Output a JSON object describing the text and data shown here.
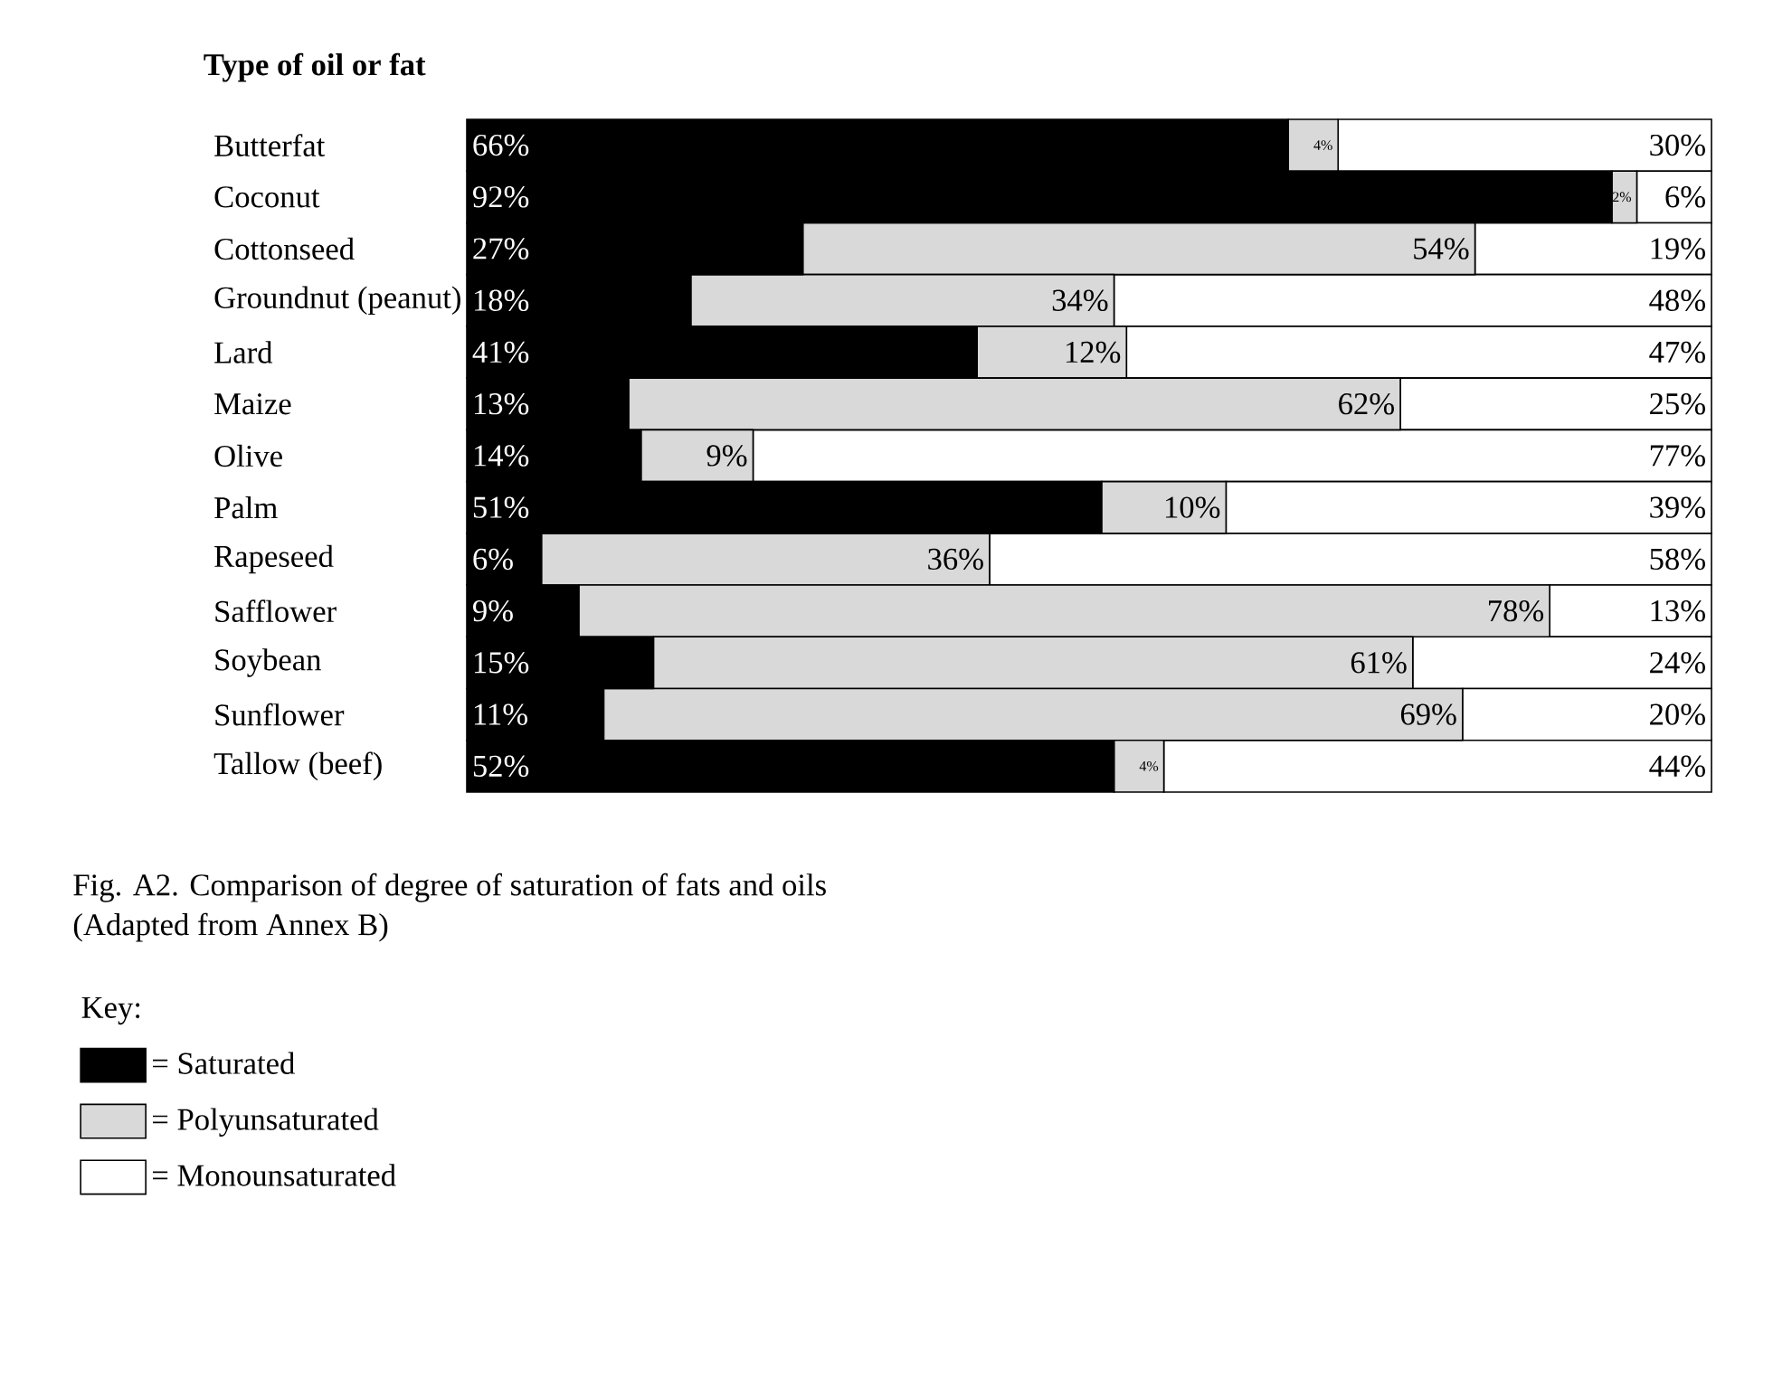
{
  "chart_data": {
    "type": "bar",
    "orientation": "horizontal",
    "stacked": true,
    "ylabel": "Type of oil or fat",
    "categories": [
      "Butterfat",
      "Coconut",
      "Cottonseed",
      "Groundnut (peanut)",
      "Lard",
      "Maize",
      "Olive",
      "Palm",
      "Rapeseed",
      "Safflower",
      "Soybean",
      "Sunflower",
      "Tallow (beef)"
    ],
    "xlim": [
      0,
      100
    ],
    "tick_labels": "y",
    "legend": "bottom left",
    "legend_title": "Key:",
    "series": [
      {
        "name": "= Saturated",
        "color": "#000000",
        "values": [
          66,
          92,
          27,
          18,
          41,
          13,
          14,
          51,
          6,
          9,
          15,
          11,
          52
        ],
        "value_labels": [
          "66%",
          "92%",
          "27%",
          "18%",
          "41%",
          "13%",
          "14%",
          "51%",
          "6%",
          "9%",
          "15%",
          "11%",
          "52%"
        ]
      },
      {
        "name": "= Polyunsaturated",
        "color": "#d9d9d9",
        "values": [
          4,
          2,
          54,
          34,
          12,
          62,
          9,
          10,
          36,
          78,
          61,
          69,
          4
        ],
        "value_labels": [
          "4%",
          "2%",
          "54%",
          "34%",
          "12%",
          "62%",
          "9%",
          "10%",
          "36%",
          "78%",
          "61%",
          "69%",
          "4%"
        ]
      },
      {
        "name": "= Monounsaturated",
        "color": "#ffffff",
        "values": [
          30,
          6,
          19,
          48,
          47,
          25,
          77,
          39,
          58,
          13,
          24,
          20,
          44
        ],
        "value_labels": [
          "30%",
          "6%",
          "19%",
          "48%",
          "47%",
          "25%",
          "77%",
          "39%",
          "58%",
          "13%",
          "24%",
          "20%",
          "44%"
        ]
      }
    ],
    "annotations": [
      "Fig. A2. Comparison of degree of saturation of fats and oils",
      "(Adapted from Annex B)"
    ]
  }
}
